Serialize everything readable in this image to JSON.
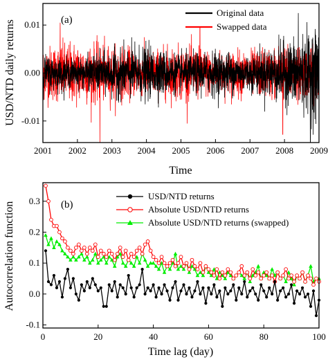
{
  "chart_data": [
    {
      "type": "line",
      "panel_label": "(a)",
      "xlabel": "Time",
      "ylabel": "USD/NTD daily returns",
      "xlim": [
        2001,
        2009
      ],
      "ylim": [
        -0.0145,
        0.0145
      ],
      "x_ticks": [
        2001,
        2002,
        2003,
        2004,
        2005,
        2006,
        2007,
        2008,
        2009
      ],
      "x_tick_labels": [
        "2001",
        "2002",
        "2003",
        "2004",
        "2005",
        "2006",
        "2007",
        "2008",
        "2009"
      ],
      "y_ticks": [
        -0.01,
        0.0,
        0.01
      ],
      "y_tick_labels": [
        "-0.01",
        "0.00",
        "0.01"
      ],
      "legend_position": "top-right",
      "series": [
        {
          "name": "Original data",
          "color": "#000000",
          "amplitude_envelope": [
            [
              2001,
              0.004
            ],
            [
              2002,
              0.003
            ],
            [
              2003,
              0.005
            ],
            [
              2004,
              0.006
            ],
            [
              2005,
              0.004
            ],
            [
              2006,
              0.005
            ],
            [
              2007,
              0.004
            ],
            [
              2008,
              0.007
            ],
            [
              2009,
              0.01
            ]
          ]
        },
        {
          "name": "Swapped data",
          "color": "#ff0000",
          "amplitude_envelope": [
            [
              2001,
              0.006
            ],
            [
              2002,
              0.007
            ],
            [
              2003,
              0.006
            ],
            [
              2004,
              0.005
            ],
            [
              2005,
              0.006
            ],
            [
              2006,
              0.005
            ],
            [
              2007,
              0.005
            ],
            [
              2008,
              0.006
            ],
            [
              2009,
              0.005
            ]
          ]
        }
      ],
      "notable_spikes": [
        {
          "x": 2002.65,
          "y": -0.0145,
          "series": "Swapped data"
        },
        {
          "x": 2001.5,
          "y": 0.0105,
          "series": "Swapped data"
        },
        {
          "x": 2005.55,
          "y": 0.0095,
          "series": "Swapped data"
        },
        {
          "x": 2007.95,
          "y": -0.0128,
          "series": "Swapped data"
        },
        {
          "x": 2008.4,
          "y": 0.0125,
          "series": "Original data"
        },
        {
          "x": 2008.75,
          "y": -0.0145,
          "series": "Original data"
        }
      ]
    },
    {
      "type": "line",
      "panel_label": "(b)",
      "xlabel": "Time lag (day)",
      "ylabel": "Autocorrelation function",
      "xlim": [
        0,
        100
      ],
      "ylim": [
        -0.11,
        0.36
      ],
      "x_ticks": [
        0,
        20,
        40,
        60,
        80,
        100
      ],
      "x_tick_labels": [
        "0",
        "20",
        "40",
        "60",
        "80",
        "100"
      ],
      "y_ticks": [
        -0.1,
        0.0,
        0.1,
        0.2,
        0.3
      ],
      "y_tick_labels": [
        "-0.1",
        "0.0",
        "0.1",
        "0.2",
        "0.3"
      ],
      "legend_position": "top-right",
      "x": [
        1,
        2,
        3,
        4,
        5,
        6,
        7,
        8,
        9,
        10,
        11,
        12,
        13,
        14,
        15,
        16,
        17,
        18,
        19,
        20,
        21,
        22,
        23,
        24,
        25,
        26,
        27,
        28,
        29,
        30,
        31,
        32,
        33,
        34,
        35,
        36,
        37,
        38,
        39,
        40,
        41,
        42,
        43,
        44,
        45,
        46,
        47,
        48,
        49,
        50,
        51,
        52,
        53,
        54,
        55,
        56,
        57,
        58,
        59,
        60,
        61,
        62,
        63,
        64,
        65,
        66,
        67,
        68,
        69,
        70,
        71,
        72,
        73,
        74,
        75,
        76,
        77,
        78,
        79,
        80,
        81,
        82,
        83,
        84,
        85,
        86,
        87,
        88,
        89,
        90,
        91,
        92,
        93,
        94,
        95,
        96,
        97,
        98,
        99,
        100
      ],
      "series": [
        {
          "name": "USD/NTD returns",
          "color": "#000000",
          "marker": "filled-circle",
          "values": [
            0.14,
            0.04,
            0.03,
            0.06,
            0.02,
            0.04,
            -0.01,
            0.05,
            0.08,
            0.02,
            0.05,
            0.0,
            -0.02,
            0.03,
            0.01,
            0.04,
            0.02,
            0.05,
            0.03,
            0.01,
            0.02,
            -0.04,
            -0.04,
            0.03,
            0.01,
            0.04,
            -0.01,
            0.03,
            0.02,
            0.0,
            0.06,
            0.02,
            -0.01,
            0.02,
            0.03,
            0.08,
            0.0,
            0.02,
            0.01,
            0.03,
            -0.01,
            0.02,
            0.0,
            0.03,
            0.01,
            -0.02,
            0.02,
            0.04,
            -0.02,
            0.01,
            0.03,
            0.0,
            0.02,
            -0.01,
            0.01,
            0.04,
            0.0,
            0.02,
            -0.03,
            0.02,
            0.0,
            0.03,
            -0.01,
            0.01,
            -0.04,
            0.02,
            0.0,
            0.01,
            0.03,
            -0.02,
            0.02,
            0.0,
            0.04,
            -0.01,
            0.01,
            0.02,
            0.0,
            -0.02,
            0.03,
            0.01,
            -0.01,
            0.02,
            0.0,
            0.04,
            -0.02,
            0.01,
            0.02,
            -0.01,
            0.0,
            0.03,
            -0.03,
            0.01,
            0.0,
            0.02,
            -0.01,
            0.0,
            -0.04,
            0.01,
            -0.07,
            -0.02
          ]
        },
        {
          "name": "Absolute USD/NTD returns",
          "color": "#ff0000",
          "marker": "open-circle",
          "values": [
            0.35,
            0.3,
            0.24,
            0.22,
            0.22,
            0.2,
            0.18,
            0.17,
            0.15,
            0.14,
            0.13,
            0.15,
            0.16,
            0.14,
            0.15,
            0.13,
            0.15,
            0.14,
            0.16,
            0.12,
            0.14,
            0.13,
            0.12,
            0.14,
            0.13,
            0.11,
            0.13,
            0.15,
            0.12,
            0.14,
            0.11,
            0.13,
            0.12,
            0.14,
            0.15,
            0.13,
            0.16,
            0.17,
            0.14,
            0.12,
            0.11,
            0.1,
            0.12,
            0.1,
            0.09,
            0.1,
            0.11,
            0.09,
            0.1,
            0.12,
            0.09,
            0.1,
            0.08,
            0.11,
            0.09,
            0.08,
            0.1,
            0.07,
            0.09,
            0.08,
            0.07,
            0.06,
            0.08,
            0.05,
            0.07,
            0.06,
            0.08,
            0.07,
            0.05,
            0.06,
            0.07,
            0.09,
            0.06,
            0.07,
            0.05,
            0.08,
            0.06,
            0.07,
            0.05,
            0.06,
            0.07,
            0.05,
            0.06,
            0.04,
            0.07,
            0.05,
            0.06,
            0.08,
            0.05,
            0.06,
            0.04,
            0.06,
            0.05,
            0.07,
            0.04,
            0.06,
            0.05,
            0.03,
            0.05,
            0.04
          ]
        },
        {
          "name": "Absolute USD/NTD returns (swapped)",
          "color": "#00ee00",
          "marker": "filled-triangle",
          "values": [
            0.19,
            0.16,
            0.18,
            0.15,
            0.17,
            0.16,
            0.14,
            0.13,
            0.12,
            0.11,
            0.12,
            0.11,
            0.12,
            0.13,
            0.11,
            0.12,
            0.1,
            0.11,
            0.13,
            0.1,
            0.11,
            0.12,
            0.1,
            0.12,
            0.11,
            0.09,
            0.12,
            0.13,
            0.1,
            0.09,
            0.11,
            0.1,
            0.09,
            0.12,
            0.1,
            0.13,
            0.11,
            0.09,
            0.1,
            0.1,
            0.09,
            0.08,
            0.1,
            0.07,
            0.09,
            0.08,
            0.1,
            0.13,
            0.08,
            0.09,
            0.08,
            0.1,
            0.07,
            0.09,
            0.08,
            0.06,
            0.07,
            0.06,
            0.09,
            0.07,
            0.06,
            0.08,
            0.05,
            0.07,
            0.06,
            0.05,
            0.07,
            0.06,
            0.05,
            0.06,
            0.07,
            0.06,
            0.05,
            0.07,
            0.04,
            0.06,
            0.07,
            0.09,
            0.05,
            0.07,
            0.06,
            0.05,
            0.08,
            0.06,
            0.07,
            0.05,
            0.06,
            0.04,
            0.07,
            0.05,
            0.03,
            0.06,
            0.05,
            0.07,
            0.04,
            0.06,
            0.09,
            0.04,
            0.05,
            0.05
          ]
        }
      ]
    }
  ]
}
